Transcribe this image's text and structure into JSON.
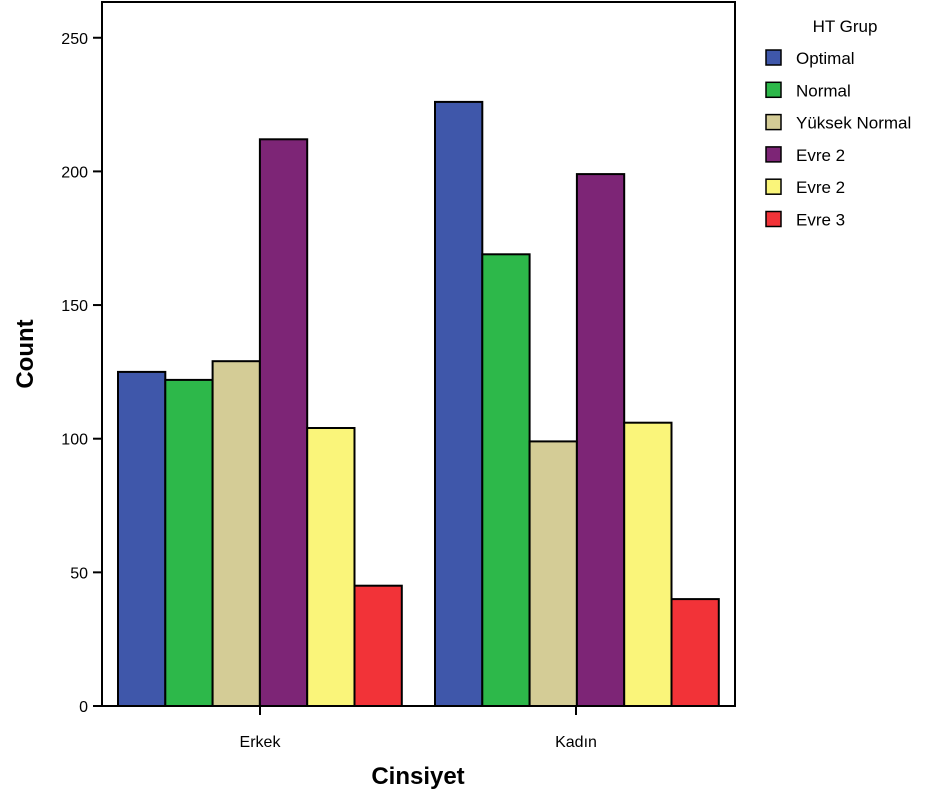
{
  "chart_data": {
    "type": "bar",
    "xlabel": "Cinsiyet",
    "ylabel": "Count",
    "categories": [
      "Erkek",
      "Kadın"
    ],
    "ylim": [
      0,
      262
    ],
    "yticks": [
      0,
      50,
      100,
      150,
      200,
      250
    ],
    "legend": {
      "title": "HT Grup",
      "position": "right"
    },
    "grid": false,
    "series": [
      {
        "name": "Optimal",
        "color": "#3f57aa",
        "values": [
          125,
          226
        ]
      },
      {
        "name": "Normal",
        "color": "#2db84a",
        "values": [
          122,
          169
        ]
      },
      {
        "name": "Yüksek Normal",
        "color": "#d4cc96",
        "values": [
          129,
          99
        ]
      },
      {
        "name": "Evre 2",
        "color": "#7d2576",
        "values": [
          212,
          199
        ]
      },
      {
        "name": "Evre 2",
        "color": "#faf57a",
        "values": [
          104,
          106
        ]
      },
      {
        "name": "Evre 3",
        "color": "#f23338",
        "values": [
          45,
          40
        ]
      }
    ]
  }
}
